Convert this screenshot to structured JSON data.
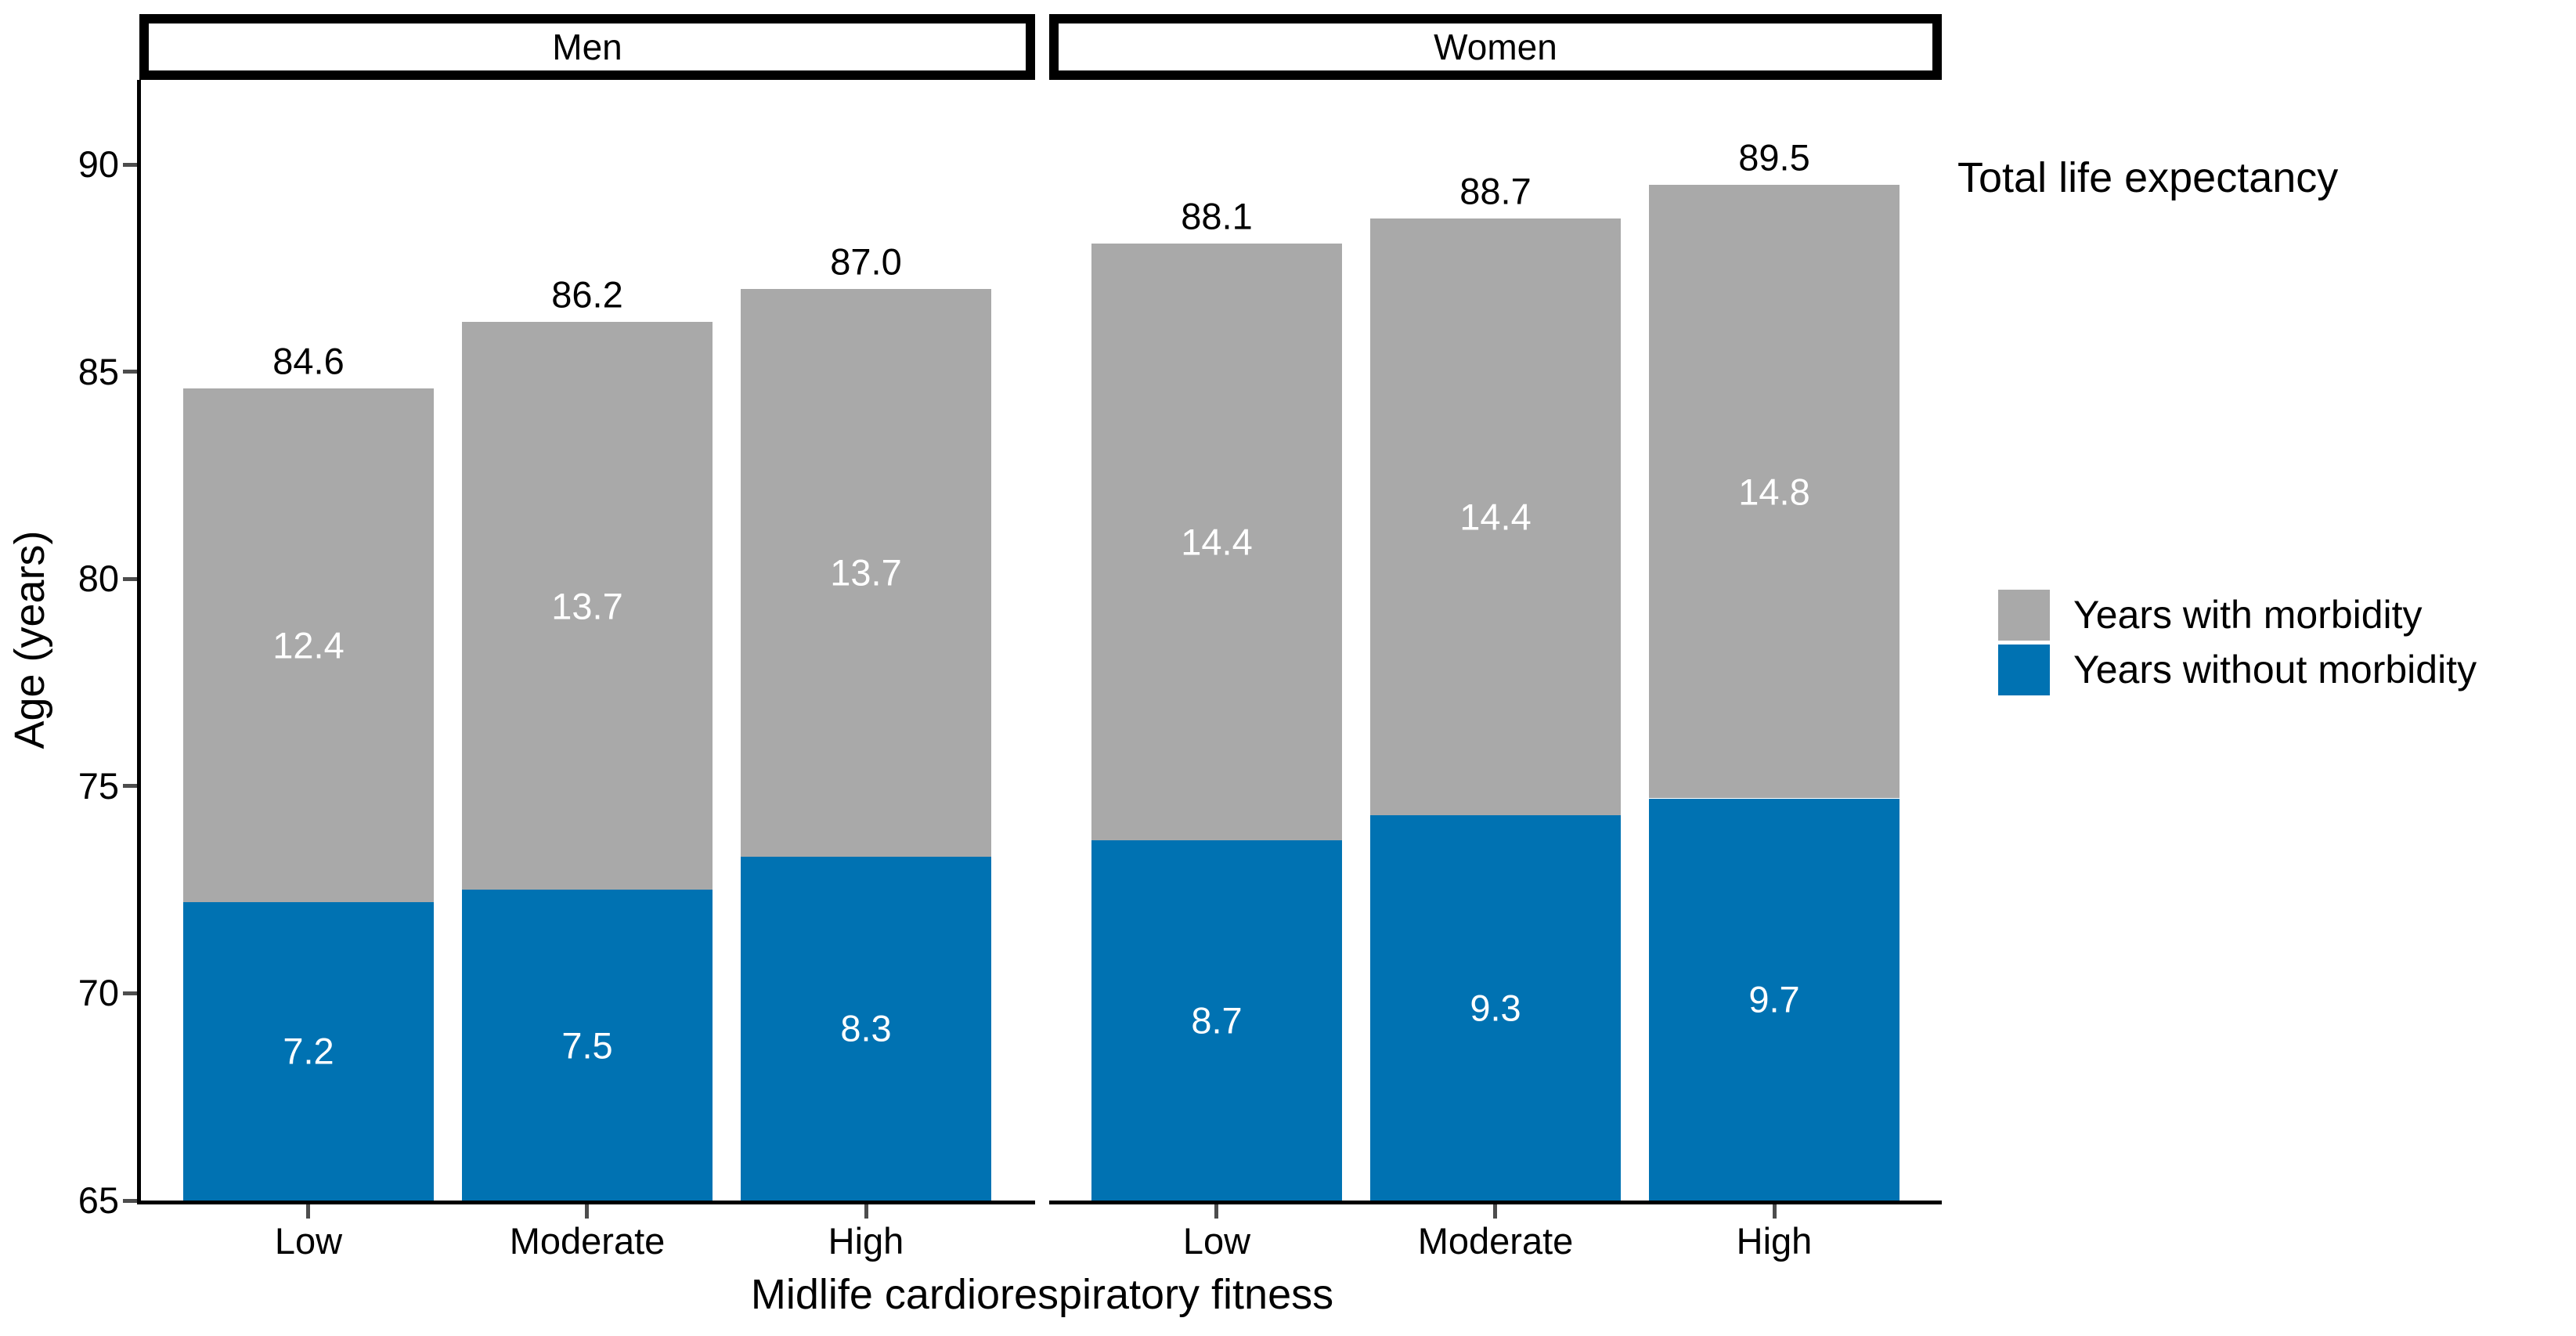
{
  "chart_data": {
    "type": "bar",
    "stacked": true,
    "xlabel": "Midlife cardiorespiratory fitness",
    "ylabel": "Age (years)",
    "annotation": "Total life expectancy",
    "baseline": 65,
    "ylim": [
      65,
      92
    ],
    "yticks": [
      65,
      70,
      75,
      80,
      85,
      90
    ],
    "grid": false,
    "legend_position": "right",
    "facets": [
      {
        "label": "Men",
        "categories": [
          "Low",
          "Moderate",
          "High"
        ],
        "series": [
          {
            "name": "Years without morbidity",
            "color": "#0072B2",
            "values": [
              7.2,
              7.5,
              8.3
            ]
          },
          {
            "name": "Years with morbidity",
            "color": "#A9A9A9",
            "values": [
              12.4,
              13.7,
              13.7
            ]
          }
        ],
        "totals": [
          84.6,
          86.2,
          87.0
        ]
      },
      {
        "label": "Women",
        "categories": [
          "Low",
          "Moderate",
          "High"
        ],
        "series": [
          {
            "name": "Years without morbidity",
            "color": "#0072B2",
            "values": [
              8.7,
              9.3,
              9.7
            ]
          },
          {
            "name": "Years with morbidity",
            "color": "#A9A9A9",
            "values": [
              14.4,
              14.4,
              14.8
            ]
          }
        ],
        "totals": [
          88.1,
          88.7,
          89.5
        ]
      }
    ],
    "legend": [
      {
        "label": "Years with morbidity",
        "color": "#A9A9A9"
      },
      {
        "label": "Years without morbidity",
        "color": "#0072B2"
      }
    ]
  },
  "colors": {
    "background": "#FFFFFF",
    "bar_blue": "#0072B2",
    "bar_gray": "#A9A9A9",
    "axis": "#000000",
    "tick": "#4D4D4D",
    "bar_value_text": "#FFFFFF",
    "text": "#000000"
  }
}
